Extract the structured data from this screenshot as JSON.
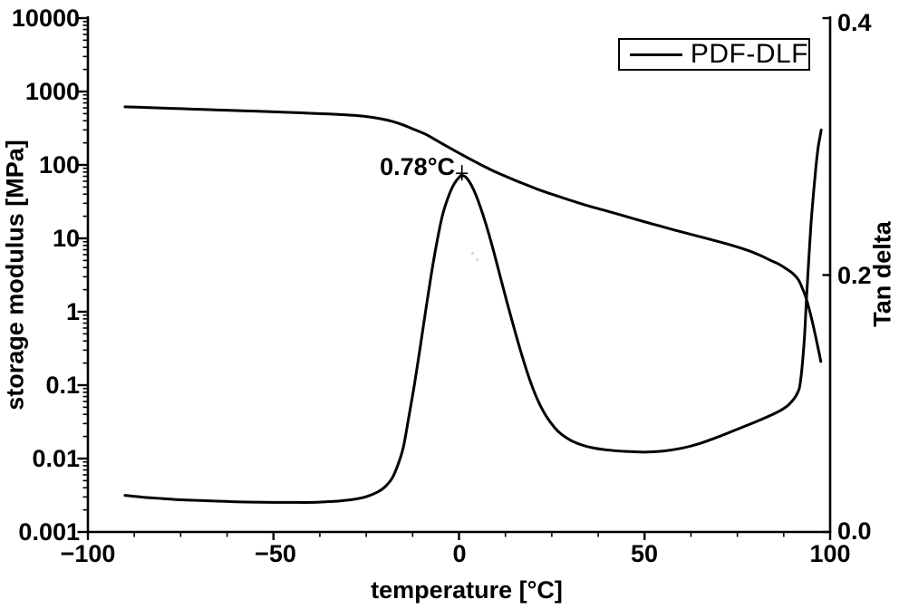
{
  "figure": {
    "background": "#ffffff",
    "line_color": "#000000"
  },
  "legend": {
    "label": "PDF-DLF"
  },
  "annotation": {
    "peak_label": "0.78°C"
  },
  "axes": {
    "left": {
      "title": "storage modulus [MPa]",
      "tick_labels": [
        "10000",
        "1000",
        "100",
        "10",
        "1",
        "0.1",
        "0.01",
        "0.001"
      ]
    },
    "right": {
      "title": "Tan delta",
      "tick_labels": [
        "0.4",
        "0.2",
        "0.0"
      ]
    },
    "bottom": {
      "title": "temperature [°C]",
      "tick_labels": [
        "−100",
        "−50",
        "0",
        "50",
        "100"
      ]
    }
  },
  "chart_data": {
    "type": "line",
    "title": "",
    "xlabel": "temperature [°C]",
    "ylabel_left": "storage modulus [MPa]",
    "ylabel_right": "Tan delta",
    "x_axis": {
      "min": -100,
      "max": 100,
      "major_ticks": [
        -100,
        -50,
        0,
        50,
        100
      ],
      "minor_step": 12.5
    },
    "y_left": {
      "scale": "log",
      "min": 0.001,
      "max": 10000,
      "major_ticks": [
        0.001,
        0.01,
        0.1,
        1,
        10,
        100,
        1000,
        10000
      ],
      "log_minor_ticks": true
    },
    "y_right": {
      "scale": "linear",
      "min": 0.0,
      "max": 0.4,
      "major_ticks": [
        0.0,
        0.2,
        0.4
      ]
    },
    "grid": false,
    "legend_position": "top-right",
    "legend_entries": [
      "PDF-DLF"
    ],
    "annotations": [
      {
        "text": "0.78°C",
        "x": 0.78,
        "y": 0.2785,
        "axis": "right",
        "marker": "plus",
        "meaning": "glass transition peak of tan delta"
      }
    ],
    "series": [
      {
        "name": "storage_modulus",
        "legend": "PDF-DLF",
        "axis": "left",
        "units": "MPa",
        "points": [
          [
            -90,
            620
          ],
          [
            -85,
            608
          ],
          [
            -80,
            596
          ],
          [
            -75,
            584
          ],
          [
            -70,
            572
          ],
          [
            -65,
            561
          ],
          [
            -60,
            550
          ],
          [
            -55,
            540
          ],
          [
            -50,
            530
          ],
          [
            -45,
            518
          ],
          [
            -40,
            506
          ],
          [
            -35,
            494
          ],
          [
            -30,
            480
          ],
          [
            -27,
            468
          ],
          [
            -24,
            450
          ],
          [
            -21,
            425
          ],
          [
            -18,
            392
          ],
          [
            -15,
            350
          ],
          [
            -12,
            303
          ],
          [
            -9,
            262
          ],
          [
            -6,
            215
          ],
          [
            -3,
            176
          ],
          [
            0,
            145
          ],
          [
            3,
            120
          ],
          [
            6,
            100
          ],
          [
            9,
            84
          ],
          [
            12,
            72
          ],
          [
            15,
            62
          ],
          [
            18,
            54
          ],
          [
            21,
            47
          ],
          [
            24,
            41.5
          ],
          [
            27,
            37
          ],
          [
            30,
            33
          ],
          [
            34,
            28.5
          ],
          [
            38,
            25
          ],
          [
            42,
            22
          ],
          [
            46,
            19.2
          ],
          [
            50,
            16.8
          ],
          [
            54,
            14.8
          ],
          [
            58,
            13
          ],
          [
            62,
            11.5
          ],
          [
            66,
            10.2
          ],
          [
            70,
            9
          ],
          [
            74,
            7.9
          ],
          [
            78,
            6.8
          ],
          [
            81,
            5.9
          ],
          [
            84,
            5
          ],
          [
            86,
            4.5
          ],
          [
            88,
            3.9
          ],
          [
            90,
            3.3
          ],
          [
            91.5,
            2.7
          ],
          [
            92.5,
            2.1
          ],
          [
            93.5,
            1.55
          ],
          [
            94.5,
            1.02
          ],
          [
            95.5,
            0.63
          ],
          [
            96.3,
            0.41
          ],
          [
            97,
            0.28
          ],
          [
            97.5,
            0.21
          ]
        ]
      },
      {
        "name": "tan_delta",
        "legend": "PDF-DLF",
        "axis": "right",
        "units": "",
        "points": [
          [
            -90,
            0.0285
          ],
          [
            -85,
            0.027
          ],
          [
            -80,
            0.026
          ],
          [
            -75,
            0.025
          ],
          [
            -70,
            0.0245
          ],
          [
            -65,
            0.024
          ],
          [
            -60,
            0.0235
          ],
          [
            -55,
            0.0232
          ],
          [
            -50,
            0.023
          ],
          [
            -45,
            0.023
          ],
          [
            -40,
            0.023
          ],
          [
            -36,
            0.0235
          ],
          [
            -32,
            0.0242
          ],
          [
            -28,
            0.0256
          ],
          [
            -25,
            0.0275
          ],
          [
            -22,
            0.031
          ],
          [
            -20,
            0.035
          ],
          [
            -18,
            0.042
          ],
          [
            -16.5,
            0.052
          ],
          [
            -15,
            0.066
          ],
          [
            -13.5,
            0.09
          ],
          [
            -12,
            0.115
          ],
          [
            -10.5,
            0.143
          ],
          [
            -9,
            0.172
          ],
          [
            -7.5,
            0.2
          ],
          [
            -6,
            0.225
          ],
          [
            -4.5,
            0.246
          ],
          [
            -3,
            0.26
          ],
          [
            -1.5,
            0.27
          ],
          [
            0,
            0.276
          ],
          [
            0.78,
            0.2775
          ],
          [
            2,
            0.2757
          ],
          [
            3.5,
            0.269
          ],
          [
            5,
            0.259
          ],
          [
            7,
            0.242
          ],
          [
            9,
            0.222
          ],
          [
            11,
            0.2
          ],
          [
            13,
            0.178
          ],
          [
            15,
            0.157
          ],
          [
            17,
            0.137
          ],
          [
            19,
            0.119
          ],
          [
            21,
            0.104
          ],
          [
            23,
            0.0925
          ],
          [
            25,
            0.084
          ],
          [
            27,
            0.0775
          ],
          [
            30,
            0.0715
          ],
          [
            33,
            0.0678
          ],
          [
            36,
            0.0655
          ],
          [
            40,
            0.0638
          ],
          [
            45,
            0.0627
          ],
          [
            50,
            0.0622
          ],
          [
            55,
            0.063
          ],
          [
            60,
            0.0652
          ],
          [
            65,
            0.069
          ],
          [
            70,
            0.0742
          ],
          [
            75,
            0.08
          ],
          [
            80,
            0.0858
          ],
          [
            84,
            0.0908
          ],
          [
            87,
            0.0952
          ],
          [
            89,
            0.0995
          ],
          [
            91,
            0.107
          ],
          [
            92,
            0.117
          ],
          [
            93,
            0.148
          ],
          [
            93.6,
            0.18
          ],
          [
            94.2,
            0.21
          ],
          [
            94.8,
            0.238
          ],
          [
            95.5,
            0.263
          ],
          [
            96.2,
            0.285
          ],
          [
            96.8,
            0.3
          ],
          [
            97.3,
            0.308
          ],
          [
            97.6,
            0.313
          ]
        ]
      }
    ]
  }
}
